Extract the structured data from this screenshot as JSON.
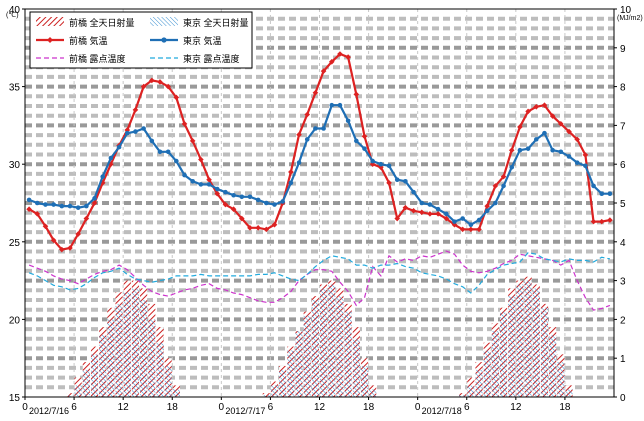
{
  "chart_data": {
    "type": "line",
    "left_axis": {
      "unit": "(℃)",
      "min": 15,
      "max": 40,
      "ticks": [
        15,
        20,
        25,
        30,
        35,
        40
      ]
    },
    "right_axis": {
      "unit": "(MJ/m2)",
      "min": 0,
      "max": 10,
      "ticks": [
        0,
        1,
        2,
        3,
        4,
        5,
        6,
        7,
        8,
        9,
        10
      ]
    },
    "x_axis": {
      "hours": 72,
      "hour_ticks": [
        "0",
        "6",
        "12",
        "18",
        "0",
        "6",
        "12",
        "18",
        "0",
        "6",
        "12",
        "18"
      ],
      "dates": [
        "2012/7/16",
        "2012/7/17",
        "2012/7/18"
      ]
    },
    "grid": "dashed",
    "legend_position": "top-left",
    "legend": [
      "前橋 全天日射量",
      "東京 全天日射量",
      "前橋 気温",
      "東京 気温",
      "前橋 露点温度",
      "東京 露点温度"
    ],
    "colors": {
      "maebashi": "#dd2222",
      "tokyo": "#1f6fb5",
      "maebashi_dew": "#cc33cc",
      "tokyo_dew": "#22aadd"
    },
    "series": [
      {
        "name": "前橋 全天日射量",
        "axis": "right",
        "kind": "hatched-bar",
        "values": [
          0,
          0,
          0,
          0,
          0,
          0.1,
          0.5,
          0.9,
          1.3,
          1.8,
          2.3,
          2.7,
          3.0,
          3.0,
          2.8,
          2.4,
          1.8,
          1.0,
          0.3,
          0,
          0,
          0,
          0,
          0,
          0,
          0,
          0,
          0,
          0,
          0.1,
          0.4,
          0.8,
          1.3,
          1.7,
          2.2,
          2.6,
          2.9,
          3.0,
          2.8,
          2.4,
          1.8,
          1.0,
          0.3,
          0,
          0,
          0,
          0,
          0,
          0,
          0,
          0,
          0,
          0,
          0.1,
          0.5,
          0.9,
          1.4,
          1.9,
          2.3,
          2.8,
          3.0,
          3.1,
          2.9,
          2.4,
          1.8,
          1.1,
          0.3,
          0,
          0,
          0,
          0,
          0
        ]
      },
      {
        "name": "東京 全天日射量",
        "axis": "right",
        "kind": "hatched-bar",
        "values": [
          0,
          0,
          0,
          0,
          0,
          0.05,
          0.3,
          0.7,
          1.1,
          1.6,
          2.0,
          2.4,
          2.7,
          2.8,
          2.5,
          2.0,
          1.4,
          0.8,
          0.2,
          0,
          0,
          0,
          0,
          0,
          0,
          0,
          0,
          0,
          0,
          0.05,
          0.3,
          0.7,
          1.2,
          1.7,
          2.1,
          2.5,
          2.8,
          2.9,
          2.6,
          2.2,
          1.5,
          0.8,
          0.2,
          0,
          0,
          0,
          0,
          0,
          0,
          0,
          0,
          0,
          0,
          0.05,
          0.3,
          0.7,
          1.2,
          1.7,
          2.2,
          2.6,
          2.9,
          3.0,
          2.8,
          2.3,
          1.6,
          0.9,
          0.2,
          0,
          0,
          0,
          0,
          0
        ]
      },
      {
        "name": "前橋 気温",
        "axis": "left",
        "kind": "line-marker",
        "values": [
          27.1,
          26.8,
          26.0,
          25.1,
          24.5,
          24.6,
          25.5,
          26.5,
          27.5,
          28.8,
          30.0,
          31.2,
          32.2,
          33.5,
          35.0,
          35.4,
          35.3,
          35.0,
          34.3,
          32.6,
          31.5,
          30.3,
          29.0,
          28.1,
          27.4,
          27.1,
          26.5,
          25.9,
          25.9,
          25.8,
          26.1,
          27.5,
          29.5,
          31.9,
          33.2,
          34.6,
          36.0,
          36.6,
          37.1,
          36.9,
          34.5,
          31.8,
          30.0,
          29.8,
          28.8,
          26.5,
          27.2,
          27.0,
          26.9,
          26.8,
          26.8,
          26.5,
          26.1,
          25.8,
          25.8,
          25.8,
          27.3,
          28.6,
          29.2,
          30.9,
          32.4,
          33.4,
          33.7,
          33.8,
          33.1,
          32.6,
          32.1,
          31.6,
          30.6,
          26.3,
          26.3,
          26.4
        ]
      },
      {
        "name": "東京 気温",
        "axis": "left",
        "kind": "line-marker",
        "values": [
          27.7,
          27.5,
          27.4,
          27.4,
          27.3,
          27.3,
          27.2,
          27.3,
          27.8,
          29.2,
          30.4,
          31.1,
          32.0,
          32.1,
          32.3,
          31.5,
          30.8,
          30.8,
          30.2,
          29.3,
          28.9,
          28.7,
          28.7,
          28.4,
          28.2,
          28.0,
          27.9,
          27.9,
          27.7,
          27.5,
          27.4,
          27.6,
          28.8,
          30.1,
          31.6,
          32.3,
          32.3,
          33.8,
          33.8,
          32.8,
          31.5,
          31.0,
          30.2,
          30.0,
          29.9,
          29.0,
          28.9,
          28.2,
          27.5,
          27.4,
          27.1,
          26.8,
          26.3,
          26.5,
          26.1,
          26.4,
          27.0,
          27.5,
          28.6,
          29.8,
          30.9,
          31.0,
          31.6,
          32.0,
          30.9,
          30.8,
          30.5,
          30.1,
          29.9,
          28.6,
          28.1,
          28.1
        ]
      },
      {
        "name": "前橋 露点温度",
        "axis": "left",
        "kind": "dashed-line",
        "values": [
          23.5,
          23.3,
          23.1,
          22.8,
          22.6,
          22.5,
          22.3,
          22.6,
          22.9,
          23.1,
          23.2,
          23.5,
          23.2,
          22.7,
          22.2,
          21.8,
          21.6,
          21.5,
          21.7,
          21.9,
          22.0,
          22.2,
          22.3,
          22.0,
          21.9,
          21.7,
          21.6,
          21.4,
          21.2,
          21.1,
          21.1,
          21.4,
          21.8,
          22.5,
          22.9,
          23.2,
          23.2,
          23.1,
          22.4,
          21.8,
          20.9,
          21.4,
          23.4,
          22.8,
          24.1,
          23.7,
          23.9,
          23.8,
          24.1,
          24.0,
          24.2,
          24.4,
          24.2,
          23.5,
          23.1,
          23.0,
          23.1,
          23.3,
          23.6,
          23.8,
          24.2,
          24.1,
          24.0,
          23.9,
          23.8,
          23.5,
          23.8,
          22.5,
          21.4,
          20.6,
          20.7,
          20.9
        ]
      },
      {
        "name": "東京 露点温度",
        "axis": "left",
        "kind": "dashed-line",
        "values": [
          23.0,
          22.8,
          22.5,
          22.2,
          22.1,
          21.9,
          22.0,
          22.3,
          22.7,
          23.0,
          23.1,
          23.3,
          22.9,
          22.6,
          22.5,
          22.4,
          22.5,
          22.6,
          22.8,
          22.8,
          22.8,
          22.9,
          22.8,
          22.8,
          22.8,
          22.8,
          22.8,
          22.8,
          22.9,
          22.9,
          23.0,
          22.8,
          22.6,
          22.5,
          22.9,
          23.4,
          23.8,
          24.1,
          24.0,
          23.9,
          23.5,
          23.5,
          23.3,
          23.5,
          23.5,
          23.6,
          23.4,
          23.3,
          23.0,
          22.9,
          22.8,
          22.6,
          22.3,
          22.1,
          21.7,
          22.2,
          22.9,
          23.2,
          23.5,
          23.6,
          23.7,
          24.3,
          24.2,
          23.9,
          23.8,
          23.7,
          23.9,
          23.8,
          23.8,
          23.7,
          24.0,
          23.9
        ]
      }
    ]
  }
}
